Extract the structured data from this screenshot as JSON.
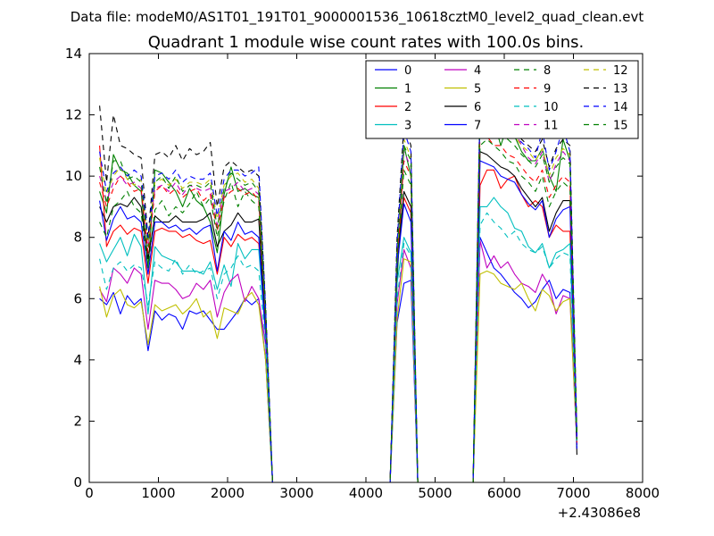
{
  "chart_data": {
    "type": "line",
    "suptitle": "Data file: modeM0/AS1T01_191T01_9000001536_10618cztM0_level2_quad_clean.evt",
    "title": "Quadrant 1 module wise count rates with 100.0s bins.",
    "xlabel": "",
    "ylabel": "",
    "x_offset_label": "+2.43086e8",
    "xlim": [
      0,
      8000
    ],
    "ylim": [
      0,
      14
    ],
    "xticks": [
      0,
      1000,
      2000,
      3000,
      4000,
      5000,
      6000,
      7000,
      8000
    ],
    "yticks": [
      0,
      2,
      4,
      6,
      8,
      10,
      12,
      14
    ],
    "legend_position": "top-right",
    "legend_columns": 4,
    "x": [
      150,
      250,
      350,
      450,
      550,
      650,
      750,
      850,
      950,
      1050,
      1150,
      1250,
      1350,
      1450,
      1550,
      1650,
      1750,
      1850,
      1950,
      2050,
      2150,
      2250,
      2350,
      2450,
      2550,
      2650,
      2750,
      2850,
      2950,
      3050,
      3150,
      3250,
      3350,
      3450,
      3550,
      3650,
      3750,
      3850,
      3950,
      4050,
      4150,
      4250,
      4350,
      4450,
      4550,
      4650,
      4750,
      4850,
      4950,
      5050,
      5150,
      5250,
      5350,
      5450,
      5550,
      5650,
      5750,
      5850,
      5950,
      6050,
      6150,
      6250,
      6350,
      6450,
      6550,
      6650,
      6750,
      6850,
      6950,
      7050
    ],
    "series": [
      {
        "name": "0",
        "color": "#0000ff",
        "dashed": false,
        "values": [
          6.0,
          5.8,
          6.2,
          5.5,
          6.1,
          5.8,
          6.0,
          4.3,
          5.6,
          5.3,
          5.5,
          5.4,
          5.0,
          5.6,
          5.5,
          5.6,
          5.3,
          5.0,
          5.0,
          5.3,
          5.6,
          6.0,
          5.8,
          6.0,
          4.0,
          0,
          0,
          0,
          0,
          0,
          0,
          0,
          0,
          0,
          0,
          0,
          0,
          0,
          0,
          0,
          0,
          0,
          0,
          5.2,
          6.5,
          6.6,
          0,
          0,
          0,
          0,
          0,
          0,
          0,
          0,
          0,
          8.0,
          7.5,
          7.0,
          6.8,
          6.5,
          6.2,
          6.0,
          5.7,
          5.9,
          6.3,
          6.6,
          6.0,
          6.3,
          6.2,
          1.5
        ]
      },
      {
        "name": "1",
        "color": "#008000",
        "dashed": false,
        "values": [
          9.5,
          8.8,
          10.7,
          10.2,
          10.1,
          9.7,
          9.5,
          7.0,
          10.2,
          10.1,
          9.8,
          9.5,
          9.0,
          9.6,
          9.2,
          9.0,
          8.5,
          7.5,
          9.4,
          10.3,
          9.5,
          9.6,
          9.4,
          9.3,
          5.5,
          0,
          0,
          0,
          0,
          0,
          0,
          0,
          0,
          0,
          0,
          0,
          0,
          0,
          0,
          0,
          0,
          0,
          0,
          6.5,
          11.0,
          10.0,
          0,
          0,
          0,
          0,
          0,
          0,
          0,
          0,
          0,
          12.0,
          11.3,
          11.8,
          11.0,
          11.7,
          11.3,
          10.8,
          10.5,
          10.5,
          10.9,
          10.0,
          9.5,
          11.2,
          10.5,
          1.5
        ]
      },
      {
        "name": "2",
        "color": "#ff0000",
        "dashed": false,
        "values": [
          11.0,
          7.7,
          8.2,
          8.4,
          8.1,
          8.3,
          8.2,
          6.5,
          8.2,
          8.3,
          8.2,
          8.2,
          8.0,
          8.1,
          7.9,
          7.8,
          7.9,
          6.8,
          8.0,
          7.7,
          8.1,
          7.9,
          8.0,
          7.8,
          5.0,
          0,
          0,
          0,
          0,
          0,
          0,
          0,
          0,
          0,
          0,
          0,
          0,
          0,
          0,
          0,
          0,
          0,
          0,
          7.5,
          9.3,
          8.8,
          0,
          0,
          0,
          0,
          0,
          0,
          0,
          0,
          0,
          9.7,
          10.2,
          10.2,
          9.6,
          9.9,
          10.0,
          9.4,
          9.0,
          9.2,
          9.0,
          8.0,
          8.4,
          8.2,
          8.2,
          1.2
        ]
      },
      {
        "name": "3",
        "color": "#00bfbf",
        "dashed": false,
        "values": [
          7.8,
          7.2,
          7.6,
          8.0,
          7.4,
          8.1,
          7.7,
          5.5,
          7.7,
          7.4,
          7.3,
          7.2,
          6.9,
          6.9,
          6.9,
          6.8,
          7.2,
          6.3,
          7.1,
          6.4,
          7.8,
          7.3,
          7.6,
          7.6,
          4.8,
          0,
          0,
          0,
          0,
          0,
          0,
          0,
          0,
          0,
          0,
          0,
          0,
          0,
          0,
          0,
          0,
          0,
          0,
          6.5,
          8.0,
          7.5,
          0,
          0,
          0,
          0,
          0,
          0,
          0,
          0,
          0,
          9.0,
          9.0,
          9.3,
          9.0,
          8.8,
          8.3,
          8.2,
          7.7,
          7.5,
          7.8,
          7.0,
          7.5,
          7.6,
          7.8,
          1.3
        ]
      },
      {
        "name": "4",
        "color": "#bf00bf",
        "dashed": false,
        "values": [
          6.3,
          5.9,
          7.0,
          6.8,
          6.5,
          7.0,
          6.8,
          5.0,
          6.6,
          6.5,
          6.5,
          6.3,
          6.0,
          6.1,
          6.5,
          6.3,
          6.6,
          5.4,
          6.2,
          6.6,
          6.8,
          5.9,
          6.4,
          6.0,
          4.5,
          0,
          0,
          0,
          0,
          0,
          0,
          0,
          0,
          0,
          0,
          0,
          0,
          0,
          0,
          0,
          0,
          0,
          0,
          5.8,
          7.6,
          7.0,
          0,
          0,
          0,
          0,
          0,
          0,
          0,
          0,
          0,
          7.9,
          7.0,
          7.4,
          7.0,
          7.2,
          6.8,
          6.5,
          6.4,
          6.2,
          6.8,
          6.4,
          5.5,
          6.1,
          6.0,
          1.2
        ]
      },
      {
        "name": "5",
        "color": "#bfbf00",
        "dashed": false,
        "values": [
          6.4,
          5.4,
          6.1,
          6.3,
          5.8,
          5.7,
          5.9,
          4.5,
          5.8,
          5.6,
          5.7,
          5.8,
          5.5,
          5.7,
          6.0,
          5.4,
          5.6,
          4.7,
          5.7,
          5.6,
          5.5,
          6.0,
          6.2,
          5.8,
          4.0,
          0,
          0,
          0,
          0,
          0,
          0,
          0,
          0,
          0,
          0,
          0,
          0,
          0,
          0,
          0,
          0,
          0,
          0,
          5.3,
          7.3,
          7.2,
          0,
          0,
          0,
          0,
          0,
          0,
          0,
          0,
          0,
          6.8,
          6.9,
          6.8,
          6.5,
          6.4,
          6.3,
          6.5,
          6.0,
          5.6,
          6.3,
          6.1,
          5.6,
          5.9,
          6.0,
          1.3
        ]
      },
      {
        "name": "6",
        "color": "#000000",
        "dashed": false,
        "values": [
          9.0,
          8.5,
          9.0,
          9.1,
          9.0,
          9.3,
          9.0,
          7.3,
          8.7,
          8.5,
          8.5,
          8.7,
          8.5,
          8.5,
          8.5,
          8.6,
          8.8,
          7.7,
          8.2,
          8.4,
          8.8,
          8.5,
          8.5,
          8.6,
          5.0,
          0,
          0,
          0,
          0,
          0,
          0,
          0,
          0,
          0,
          0,
          0,
          0,
          0,
          0,
          0,
          0,
          0,
          0,
          7.0,
          9.5,
          9.0,
          0,
          0,
          0,
          0,
          0,
          0,
          0,
          0,
          0,
          10.8,
          10.7,
          10.5,
          10.3,
          10.2,
          10.0,
          9.6,
          9.3,
          9.0,
          9.3,
          8.2,
          8.8,
          9.2,
          9.2,
          0.9
        ]
      },
      {
        "name": "7",
        "color": "#0000ff",
        "dashed": false,
        "values": [
          9.2,
          7.9,
          8.6,
          9.0,
          8.6,
          8.7,
          8.5,
          6.8,
          8.5,
          8.5,
          8.3,
          8.4,
          8.2,
          8.3,
          8.1,
          8.3,
          8.4,
          6.9,
          8.2,
          7.9,
          8.5,
          8.1,
          8.2,
          8.0,
          4.8,
          0,
          0,
          0,
          0,
          0,
          0,
          0,
          0,
          0,
          0,
          0,
          0,
          0,
          0,
          0,
          0,
          0,
          0,
          7.0,
          9.1,
          8.5,
          0,
          0,
          0,
          0,
          0,
          0,
          0,
          0,
          0,
          10.5,
          10.4,
          10.3,
          10.0,
          9.9,
          9.8,
          9.4,
          9.1,
          8.9,
          9.2,
          8.0,
          8.6,
          8.9,
          9.0,
          1.1
        ]
      },
      {
        "name": "8",
        "color": "#008000",
        "dashed": true,
        "values": [
          8.5,
          8.0,
          9.0,
          9.2,
          9.5,
          9.0,
          8.8,
          7.0,
          8.9,
          9.2,
          8.7,
          9.0,
          8.8,
          9.1,
          9.5,
          9.0,
          9.3,
          8.0,
          9.2,
          9.8,
          9.0,
          9.5,
          9.2,
          9.0,
          5.3,
          0,
          0,
          0,
          0,
          0,
          0,
          0,
          0,
          0,
          0,
          0,
          0,
          0,
          0,
          0,
          0,
          0,
          0,
          7.2,
          10.2,
          9.7,
          0,
          0,
          0,
          0,
          0,
          0,
          0,
          0,
          0,
          11.0,
          11.2,
          11.0,
          10.8,
          10.5,
          10.4,
          10.0,
          9.8,
          9.5,
          10.0,
          9.0,
          9.5,
          9.8,
          9.6,
          1.4
        ]
      },
      {
        "name": "9",
        "color": "#ff0000",
        "dashed": true,
        "values": [
          9.8,
          9.0,
          9.6,
          10.0,
          9.8,
          9.5,
          9.6,
          7.5,
          9.5,
          9.7,
          9.4,
          9.6,
          9.3,
          9.5,
          9.6,
          9.2,
          9.4,
          8.2,
          9.3,
          9.5,
          9.6,
          9.4,
          9.5,
          9.2,
          5.4,
          0,
          0,
          0,
          0,
          0,
          0,
          0,
          0,
          0,
          0,
          0,
          0,
          0,
          0,
          0,
          0,
          0,
          0,
          7.3,
          10.5,
          10.0,
          0,
          0,
          0,
          0,
          0,
          0,
          0,
          0,
          0,
          11.5,
          11.3,
          11.0,
          11.0,
          10.7,
          10.6,
          10.3,
          10.0,
          9.8,
          10.2,
          9.3,
          9.7,
          10.0,
          9.8,
          1.3
        ]
      },
      {
        "name": "10",
        "color": "#00bfbf",
        "dashed": true,
        "values": [
          7.3,
          6.3,
          7.0,
          7.2,
          6.9,
          7.1,
          7.0,
          5.8,
          7.2,
          7.0,
          6.9,
          7.3,
          6.8,
          7.1,
          6.8,
          6.9,
          7.0,
          6.0,
          6.8,
          7.0,
          7.4,
          7.0,
          7.1,
          6.9,
          4.6,
          0,
          0,
          0,
          0,
          0,
          0,
          0,
          0,
          0,
          0,
          0,
          0,
          0,
          0,
          0,
          0,
          0,
          0,
          6.0,
          7.8,
          7.4,
          0,
          0,
          0,
          0,
          0,
          0,
          0,
          0,
          0,
          8.4,
          8.8,
          8.5,
          8.3,
          8.0,
          8.2,
          7.8,
          7.6,
          7.5,
          7.7,
          7.0,
          7.3,
          7.5,
          7.4,
          1.2
        ]
      },
      {
        "name": "11",
        "color": "#bf00bf",
        "dashed": true,
        "values": [
          10.0,
          9.2,
          9.8,
          10.0,
          9.7,
          9.8,
          9.6,
          7.8,
          9.6,
          9.7,
          9.5,
          9.8,
          9.4,
          9.7,
          9.6,
          9.5,
          9.6,
          8.4,
          9.5,
          9.6,
          9.8,
          9.5,
          9.6,
          9.4,
          5.5,
          0,
          0,
          0,
          0,
          0,
          0,
          0,
          0,
          0,
          0,
          0,
          0,
          0,
          0,
          0,
          0,
          0,
          0,
          7.5,
          10.8,
          10.3,
          0,
          0,
          0,
          0,
          0,
          0,
          0,
          0,
          0,
          12.8,
          12.5,
          11.8,
          12.0,
          11.2,
          11.5,
          11.0,
          10.6,
          10.4,
          10.8,
          9.8,
          10.4,
          10.8,
          10.5,
          1.4
        ]
      },
      {
        "name": "12",
        "color": "#bfbf00",
        "dashed": true,
        "values": [
          10.6,
          9.4,
          10.0,
          10.3,
          9.9,
          9.7,
          9.9,
          7.9,
          9.8,
          9.9,
          9.7,
          9.9,
          9.6,
          9.8,
          9.8,
          9.7,
          9.9,
          8.6,
          9.7,
          10.0,
          10.1,
          9.8,
          9.9,
          9.6,
          5.6,
          0,
          0,
          0,
          0,
          0,
          0,
          0,
          0,
          0,
          0,
          0,
          0,
          0,
          0,
          0,
          0,
          0,
          0,
          7.6,
          11.2,
          10.6,
          0,
          0,
          0,
          0,
          0,
          0,
          0,
          0,
          0,
          12.6,
          12.2,
          12.0,
          11.8,
          11.5,
          11.3,
          11.0,
          10.8,
          10.5,
          10.9,
          10.0,
          10.6,
          10.9,
          10.7,
          1.5
        ]
      },
      {
        "name": "13",
        "color": "#000000",
        "dashed": true,
        "values": [
          12.3,
          9.8,
          12.0,
          11.0,
          10.9,
          10.7,
          10.6,
          8.0,
          10.7,
          10.8,
          10.6,
          11.0,
          10.5,
          10.9,
          10.7,
          10.8,
          11.1,
          9.0,
          10.3,
          10.5,
          10.3,
          10.1,
          10.2,
          10.0,
          5.8,
          0,
          0,
          0,
          0,
          0,
          0,
          0,
          0,
          0,
          0,
          0,
          0,
          0,
          0,
          0,
          0,
          0,
          0,
          8.0,
          11.7,
          11.0,
          0,
          0,
          0,
          0,
          0,
          0,
          0,
          0,
          0,
          12.5,
          12.3,
          12.2,
          12.0,
          11.8,
          11.6,
          11.2,
          11.0,
          10.8,
          11.2,
          10.3,
          10.9,
          11.2,
          11.0,
          1.6
        ]
      },
      {
        "name": "14",
        "color": "#0000ff",
        "dashed": true,
        "values": [
          10.8,
          9.5,
          10.1,
          10.3,
          10.0,
          10.2,
          10.0,
          8.0,
          10.0,
          10.1,
          9.9,
          10.2,
          9.8,
          10.0,
          9.9,
          9.9,
          10.1,
          8.7,
          9.9,
          10.2,
          10.2,
          10.0,
          10.1,
          10.3,
          5.7,
          0,
          0,
          0,
          0,
          0,
          0,
          0,
          0,
          0,
          0,
          0,
          0,
          0,
          0,
          0,
          0,
          0,
          0,
          7.8,
          11.5,
          10.8,
          0,
          0,
          0,
          0,
          0,
          0,
          0,
          0,
          0,
          12.4,
          12.2,
          12.0,
          11.8,
          11.6,
          11.4,
          11.1,
          10.9,
          10.6,
          11.5,
          10.2,
          10.8,
          11.6,
          10.8,
          1.5
        ]
      },
      {
        "name": "15",
        "color": "#008000",
        "dashed": true,
        "values": [
          10.3,
          9.1,
          10.5,
          10.5,
          9.9,
          10.0,
          9.8,
          7.7,
          9.8,
          10.0,
          9.6,
          10.0,
          9.5,
          9.7,
          9.7,
          9.6,
          9.8,
          8.3,
          9.6,
          10.1,
          9.9,
          9.7,
          9.8,
          9.5,
          5.6,
          0,
          0,
          0,
          0,
          0,
          0,
          0,
          0,
          0,
          0,
          0,
          0,
          0,
          0,
          0,
          0,
          0,
          0,
          7.5,
          11.0,
          10.5,
          0,
          0,
          0,
          0,
          0,
          0,
          0,
          0,
          0,
          12.5,
          12.0,
          11.8,
          11.5,
          11.2,
          11.0,
          10.7,
          10.5,
          10.3,
          10.7,
          9.8,
          10.3,
          10.6,
          10.4,
          1.4
        ]
      }
    ]
  }
}
